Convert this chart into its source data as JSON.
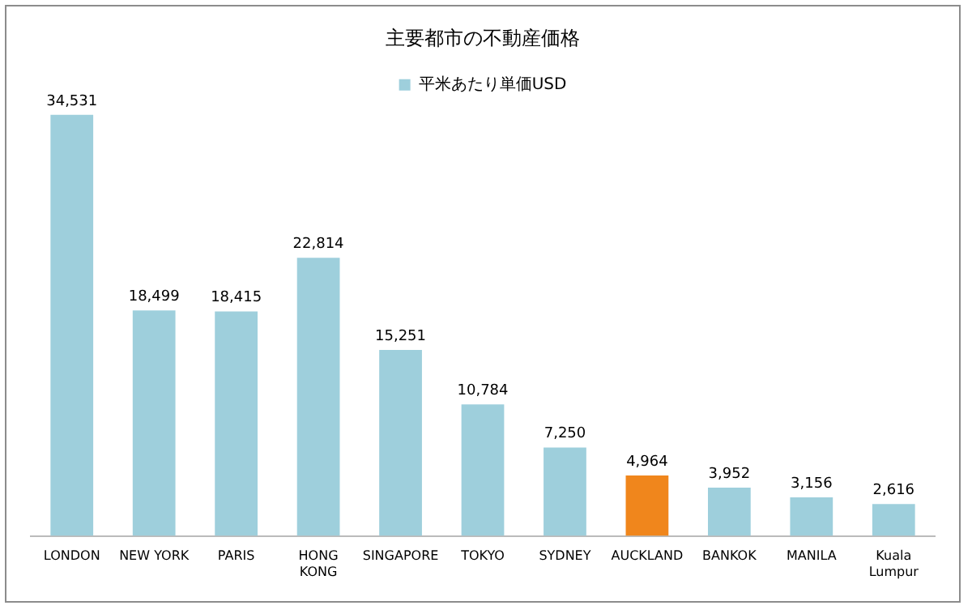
{
  "chart_data": {
    "type": "bar",
    "title": "主要都市の不動産価格",
    "categories": [
      "LONDON",
      "NEW YORK",
      "PARIS",
      "HONG KONG",
      "SINGAPORE",
      "TOKYO",
      "SYDNEY",
      "AUCKLAND",
      "BANKOK",
      "MANILA",
      "Kuala Lumpur"
    ],
    "series": [
      {
        "name": "平米あたり単価USD",
        "color": "#9ecfdc",
        "colors": [
          "#9ecfdc",
          "#9ecfdc",
          "#9ecfdc",
          "#9ecfdc",
          "#9ecfdc",
          "#9ecfdc",
          "#9ecfdc",
          "#f0861c",
          "#9ecfdc",
          "#9ecfdc",
          "#9ecfdc"
        ],
        "values": [
          34531,
          18499,
          18415,
          22814,
          15251,
          10784,
          7250,
          4964,
          3952,
          3156,
          2616
        ],
        "value_labels": [
          "34,531",
          "18,499",
          "18,415",
          "22,814",
          "15,251",
          "10,784",
          "7,250",
          "4,964",
          "3,952",
          "3,156",
          "2,616"
        ]
      }
    ],
    "legend": "top",
    "grid": false,
    "tick_labels": "x"
  }
}
